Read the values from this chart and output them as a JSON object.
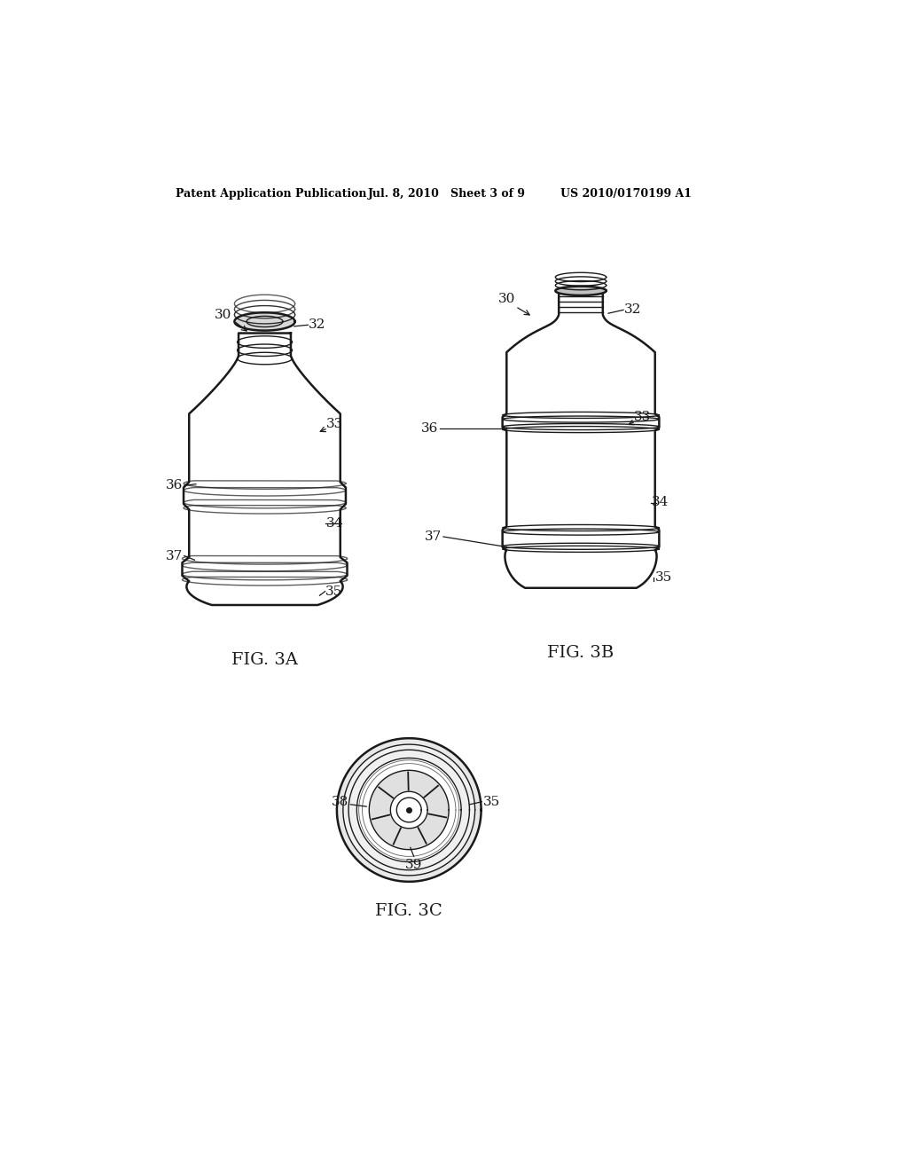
{
  "bg_color": "#ffffff",
  "line_color": "#1a1a1a",
  "header_left": "Patent Application Publication",
  "header_mid": "Jul. 8, 2010   Sheet 3 of 9",
  "header_right": "US 2010/0170199 A1",
  "fig3a_label": "FIG. 3A",
  "fig3b_label": "FIG. 3B",
  "fig3c_label": "FIG. 3C"
}
